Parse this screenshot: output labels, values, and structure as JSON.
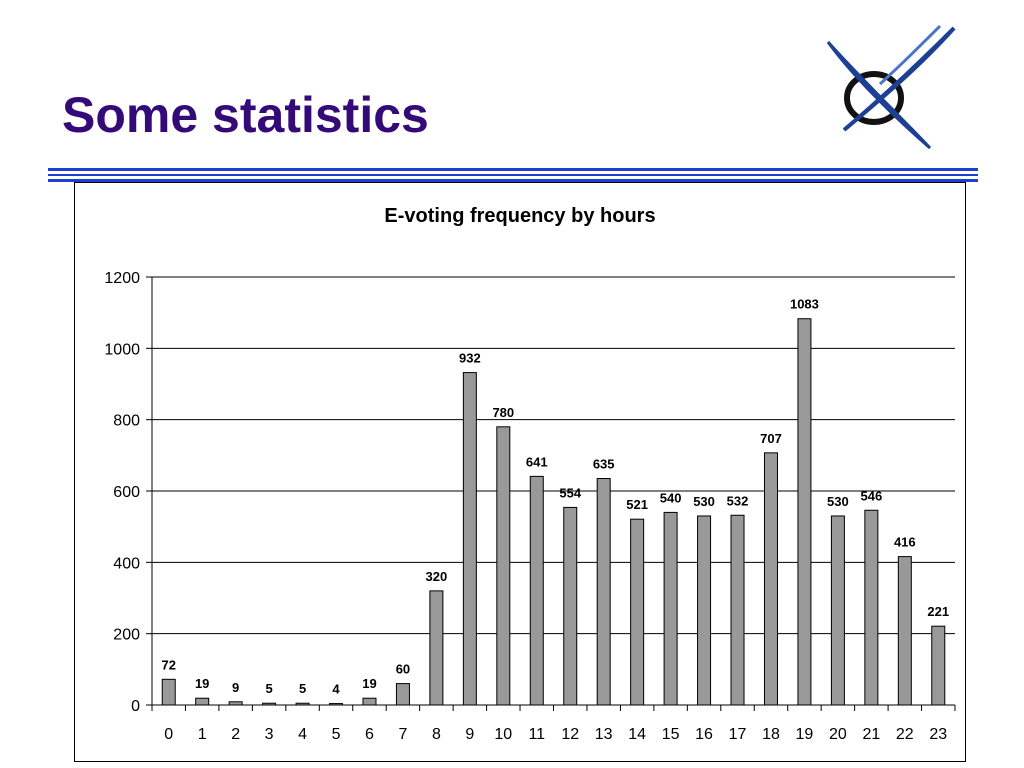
{
  "slide": {
    "title": "Some statistics",
    "title_color": "#330a78"
  },
  "logo": {
    "icon": "crossed-swoosh-circle-logo",
    "color": "#1d3f94"
  },
  "colors": {
    "rule": "#1f3fd0",
    "bar_fill": "#999999",
    "bar_stroke": "#000000"
  },
  "chart_data": {
    "type": "bar",
    "title": "E-voting frequency by hours",
    "xlabel": "",
    "ylabel": "",
    "categories": [
      "0",
      "1",
      "2",
      "3",
      "4",
      "5",
      "6",
      "7",
      "8",
      "9",
      "10",
      "11",
      "12",
      "13",
      "14",
      "15",
      "16",
      "17",
      "18",
      "19",
      "20",
      "21",
      "22",
      "23"
    ],
    "values": [
      72,
      19,
      9,
      5,
      5,
      4,
      19,
      60,
      320,
      932,
      780,
      641,
      554,
      635,
      521,
      540,
      530,
      532,
      707,
      1083,
      530,
      546,
      416,
      221
    ],
    "ylim": [
      0,
      1200
    ],
    "yticks": [
      0,
      200,
      400,
      600,
      800,
      1000,
      1200
    ],
    "grid": true,
    "legend": "none",
    "data_labels": true
  }
}
